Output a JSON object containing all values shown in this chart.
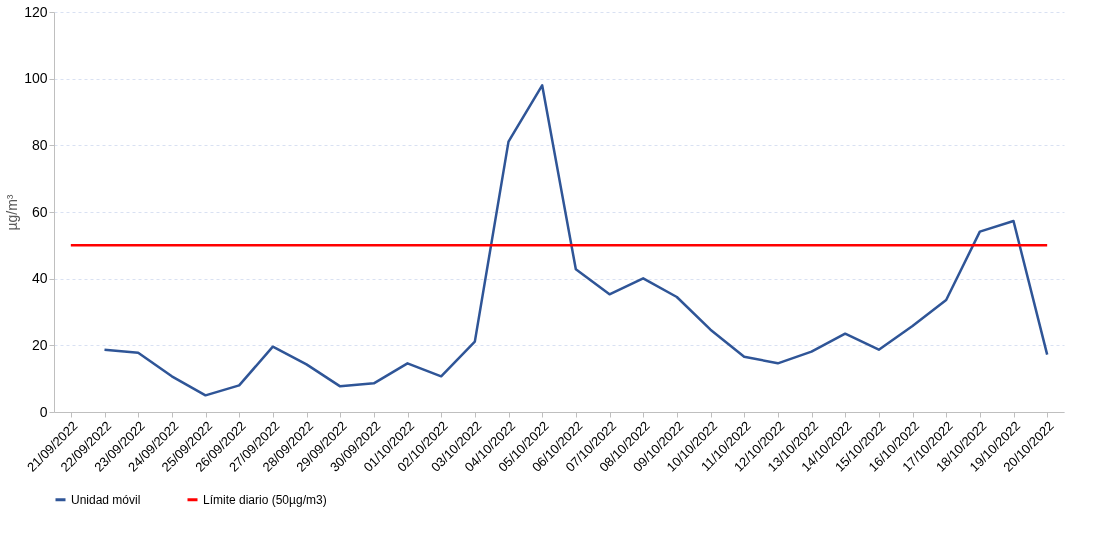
{
  "chart_data": {
    "type": "line",
    "ylabel": "µg/m³",
    "categories": [
      "21/09/2022",
      "22/09/2022",
      "23/09/2022",
      "24/09/2022",
      "25/09/2022",
      "26/09/2022",
      "27/09/2022",
      "28/09/2022",
      "29/09/2022",
      "30/09/2022",
      "01/10/2022",
      "02/10/2022",
      "03/10/2022",
      "04/10/2022",
      "05/10/2022",
      "06/10/2022",
      "07/10/2022",
      "08/10/2022",
      "09/10/2022",
      "10/10/2022",
      "11/10/2022",
      "12/10/2022",
      "13/10/2022",
      "14/10/2022",
      "15/10/2022",
      "16/10/2022",
      "17/10/2022",
      "18/10/2022",
      "19/10/2022",
      "20/10/2022"
    ],
    "series": [
      {
        "name": "Unidad móvil",
        "color": "#2f5597",
        "values": [
          null,
          18.7,
          17.8,
          10.7,
          5.0,
          8.0,
          19.6,
          14.3,
          7.7,
          8.6,
          14.6,
          10.7,
          21.1,
          81.1,
          98.0,
          42.8,
          35.3,
          40.1,
          34.5,
          24.7,
          16.6,
          14.6,
          18.1,
          23.5,
          18.7,
          25.8,
          33.6,
          54.1,
          57.3,
          17.2
        ]
      }
    ],
    "ref_lines": [
      {
        "axis": "y",
        "value": 50,
        "label": "Límite diario (50µg/m3)",
        "color": "#ff0000"
      }
    ],
    "ylim": [
      0,
      120
    ],
    "yticks": [
      0,
      20,
      40,
      60,
      80,
      100,
      120
    ],
    "grid": "y",
    "legend": "bottom",
    "marker": "none",
    "line_style": "solid"
  }
}
